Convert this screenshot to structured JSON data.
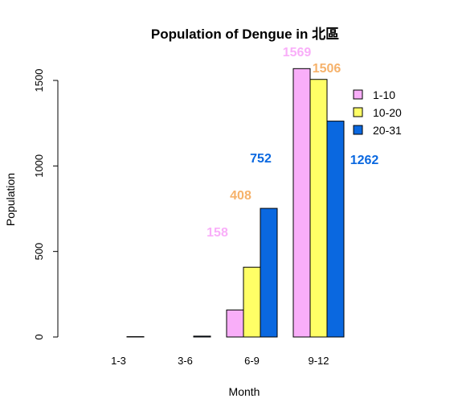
{
  "chart_data": {
    "type": "bar",
    "title": "Population of Dengue in  北區",
    "xlabel": "Month",
    "ylabel": "Population",
    "categories": [
      "1-3",
      "3-6",
      "6-9",
      "9-12"
    ],
    "series": [
      {
        "name": "1-10",
        "color": "#F9AEF9",
        "values": [
          0,
          0,
          158,
          1569
        ],
        "labels": [
          "",
          "",
          "158",
          "1569"
        ]
      },
      {
        "name": "10-20",
        "color": "#FFFF66",
        "values": [
          0,
          0,
          408,
          1506
        ],
        "labels": [
          "",
          "",
          "408",
          "1506"
        ]
      },
      {
        "name": "20-31",
        "color": "#0A68E0",
        "values": [
          2,
          5,
          752,
          1262
        ],
        "labels": [
          "",
          "",
          "752",
          "1262"
        ]
      }
    ],
    "label_colors": [
      "#F9AEF9",
      "#F6B26B",
      "#0A68E0"
    ],
    "yticks": [
      0,
      500,
      1000,
      1500
    ],
    "ylim": [
      0,
      1600
    ],
    "legend_position": "top-right",
    "grid": false
  }
}
